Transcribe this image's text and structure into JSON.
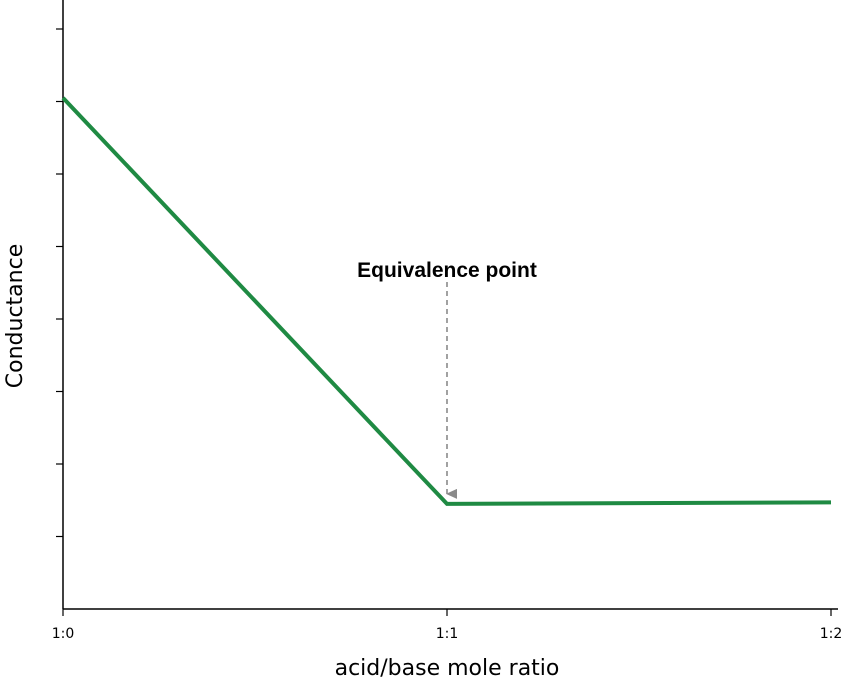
{
  "chart_data": {
    "type": "line",
    "title": "",
    "xlabel": "acid/base mole ratio",
    "ylabel": "Conductance",
    "x_ticks": [
      {
        "value": 0,
        "label": "1:0"
      },
      {
        "value": 1,
        "label": "1:1"
      },
      {
        "value": 2,
        "label": "1:2"
      }
    ],
    "xlim": [
      0,
      2
    ],
    "ylim": [
      0,
      8.4
    ],
    "y_tick_count": 9,
    "y_tick_labels_shown": false,
    "grid": false,
    "legend": "none",
    "series": [
      {
        "color": "#1f8a43",
        "points": [
          {
            "x": 0,
            "y": 7.05
          },
          {
            "x": 1,
            "y": 1.45
          },
          {
            "x": 2,
            "y": 1.47
          }
        ]
      }
    ],
    "annotations": [
      {
        "text": "Equivalence point",
        "x": 1,
        "y": 1.45,
        "arrow_color": "#8a8a8a",
        "arrow_style": "dashed"
      }
    ]
  }
}
